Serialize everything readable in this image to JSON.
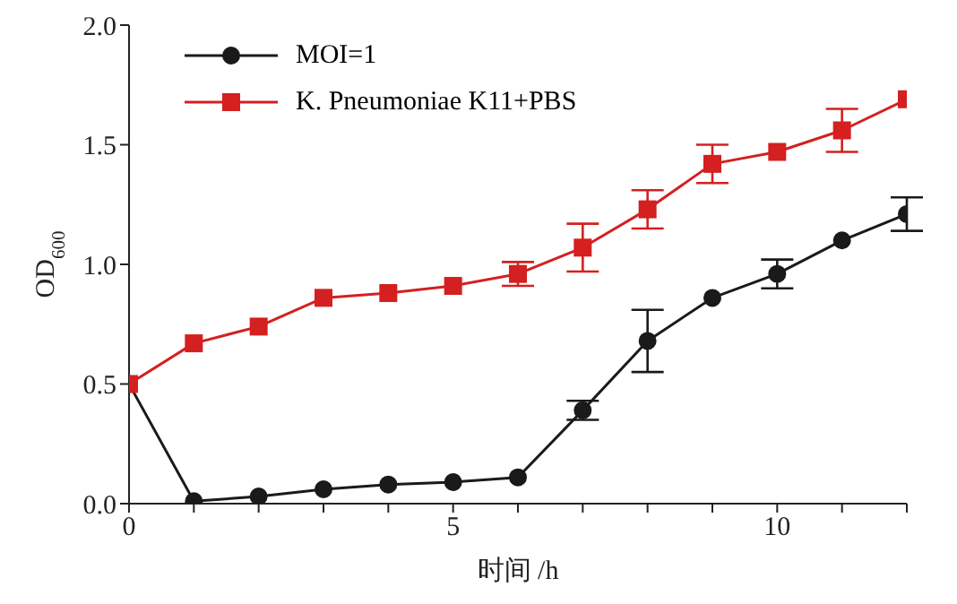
{
  "chart_data": {
    "type": "line",
    "xlabel": "时间 /h",
    "ylabel": "OD$_{600}$",
    "x": [
      0,
      1,
      2,
      3,
      4,
      5,
      6,
      7,
      8,
      9,
      10,
      11,
      12
    ],
    "xlim": [
      0,
      12
    ],
    "xticks": [
      0,
      {
        "value": 1,
        "label": null
      },
      {
        "value": 2,
        "label": null
      },
      {
        "value": 3,
        "label": null
      },
      {
        "value": 4,
        "label": null
      },
      5,
      {
        "value": 6,
        "label": null
      },
      {
        "value": 7,
        "label": null
      },
      {
        "value": 8,
        "label": null
      },
      {
        "value": 9,
        "label": null
      },
      10,
      {
        "value": 11,
        "label": null
      },
      {
        "value": 12,
        "label": null
      }
    ],
    "ylim": [
      0,
      2
    ],
    "yticks": [
      {
        "value": 0,
        "label": "0.0"
      },
      0.5,
      {
        "value": 1,
        "label": "1.0"
      },
      1.5,
      {
        "value": 2,
        "label": "2.0"
      }
    ],
    "legend": "top left",
    "line_style": "solid",
    "series": [
      {
        "name": "MOI=1",
        "color": "#1a1a1a",
        "marker": "circle",
        "values": [
          0.5,
          0.01,
          0.03,
          0.06,
          0.08,
          0.09,
          0.11,
          0.39,
          0.68,
          0.86,
          0.96,
          1.1,
          1.21
        ],
        "errors": [
          null,
          null,
          null,
          null,
          null,
          null,
          null,
          0.04,
          0.13,
          null,
          0.06,
          null,
          0.07
        ]
      },
      {
        "name": "K. Pneumoniae K11+PBS",
        "color": "#d42020",
        "marker": "square",
        "values": [
          0.5,
          0.67,
          0.74,
          0.86,
          0.88,
          0.91,
          0.96,
          1.07,
          1.23,
          1.42,
          1.47,
          1.56,
          1.69
        ],
        "errors": [
          null,
          null,
          null,
          null,
          null,
          null,
          0.05,
          0.1,
          0.08,
          0.08,
          null,
          0.09,
          null
        ]
      }
    ]
  }
}
